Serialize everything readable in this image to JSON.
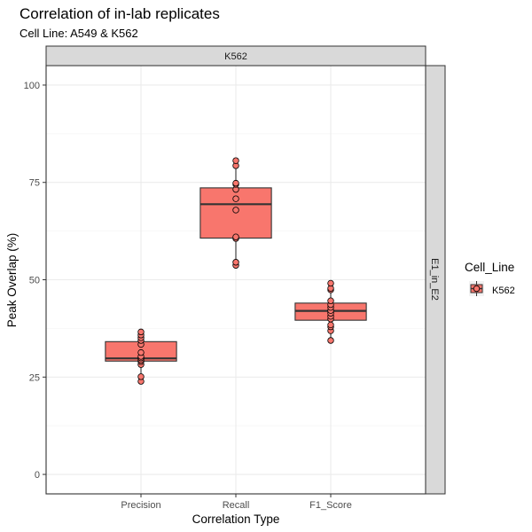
{
  "chart_data": {
    "type": "boxplot",
    "title": "Correlation of in-lab replicates",
    "subtitle": "Cell Line: A549 & K562",
    "xlabel": "Correlation Type",
    "ylabel": "Peak Overlap (%)",
    "ylim": [
      -5,
      105
    ],
    "yticks": [
      0,
      25,
      50,
      75,
      100
    ],
    "categories": [
      "Precision",
      "Recall",
      "F1_Score"
    ],
    "facet_top": "K562",
    "facet_right": "E1_in_E2",
    "grid": true,
    "legend": {
      "title": "Cell_Line",
      "position": "right",
      "entries": [
        "K562"
      ]
    },
    "colors": {
      "fill": "#F8766D",
      "outline": "#333333",
      "strip_fill": "#D9D9D9",
      "grid_major": "#EBEBEB",
      "grid_minor": "#F5F5F5"
    },
    "series": [
      {
        "name": "K562",
        "boxes": [
          {
            "category": "Precision",
            "whisker_low": 23.9,
            "q1": 29.1,
            "median": 29.8,
            "q3": 34.1,
            "whisker_high": 36.6,
            "points": [
              23.9,
              25.1,
              28.2,
              29.0,
              29.4,
              29.9,
              30.3,
              31.3,
              33.4,
              34.4,
              35.1,
              35.8,
              36.6
            ]
          },
          {
            "category": "Recall",
            "whisker_low": 53.7,
            "q1": 60.7,
            "median": 69.4,
            "q3": 73.6,
            "whisker_high": 80.6,
            "points": [
              53.7,
              54.5,
              60.6,
              61.0,
              67.9,
              70.8,
              73.2,
              74.5,
              74.8,
              79.3,
              80.6
            ]
          },
          {
            "category": "F1_Score",
            "whisker_low": 34.4,
            "q1": 39.6,
            "median": 42.0,
            "q3": 44.0,
            "whisker_high": 49.1,
            "points": [
              34.4,
              36.9,
              37.9,
              38.4,
              39.9,
              40.6,
              41.4,
              42.1,
              42.9,
              43.6,
              44.6,
              47.4,
              47.8,
              49.1
            ]
          }
        ]
      }
    ]
  }
}
